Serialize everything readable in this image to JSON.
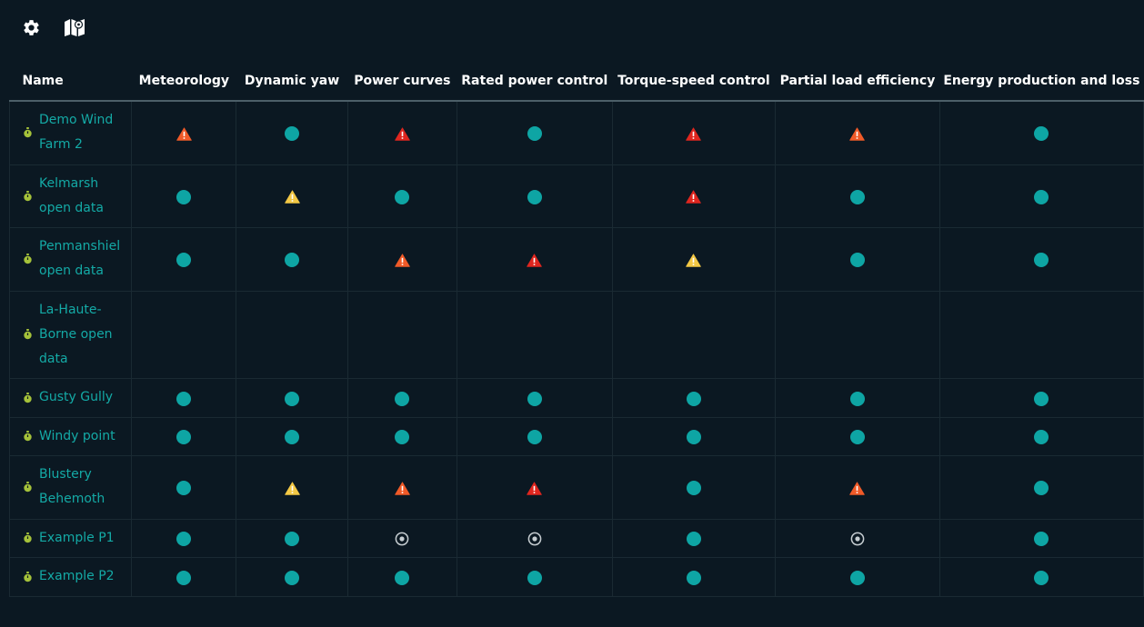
{
  "toolbar": {
    "items": [
      {
        "name": "settings",
        "icon": "gear-icon"
      },
      {
        "name": "map",
        "icon": "map-icon"
      }
    ]
  },
  "table": {
    "name_header": "Name",
    "columns": [
      "Meteorology",
      "Dynamic yaw",
      "Power curves",
      "Rated power control",
      "Torque-speed control",
      "Partial load efficiency",
      "Energy production and loss"
    ],
    "rows": [
      {
        "name": "Demo Wind Farm 2",
        "statuses": [
          "warning-orange",
          "ok",
          "warning-red",
          "ok",
          "warning-red",
          "warning-orange",
          "ok"
        ]
      },
      {
        "name": "Kelmarsh open data",
        "statuses": [
          "ok",
          "warning-yellow",
          "ok",
          "ok",
          "warning-red",
          "ok",
          "ok"
        ]
      },
      {
        "name": "Penmanshiel open data",
        "statuses": [
          "ok",
          "ok",
          "warning-orange",
          "warning-red",
          "warning-yellow",
          "ok",
          "ok"
        ]
      },
      {
        "name": "La-Haute-Borne open data",
        "statuses": [
          "none",
          "none",
          "none",
          "none",
          "none",
          "none",
          "none"
        ]
      },
      {
        "name": "Gusty Gully",
        "statuses": [
          "ok",
          "ok",
          "ok",
          "ok",
          "ok",
          "ok",
          "ok"
        ]
      },
      {
        "name": "Windy point",
        "statuses": [
          "ok",
          "ok",
          "ok",
          "ok",
          "ok",
          "ok",
          "ok"
        ]
      },
      {
        "name": "Blustery Behemoth",
        "statuses": [
          "ok",
          "warning-yellow",
          "warning-orange",
          "warning-red",
          "ok",
          "warning-orange",
          "ok"
        ]
      },
      {
        "name": "Example P1",
        "statuses": [
          "ok",
          "ok",
          "pending",
          "pending",
          "ok",
          "pending",
          "ok"
        ]
      },
      {
        "name": "Example P2",
        "statuses": [
          "ok",
          "ok",
          "ok",
          "ok",
          "ok",
          "ok",
          "ok"
        ]
      }
    ]
  },
  "colors": {
    "background": "#0b1822",
    "accent": "#14aaa6",
    "ok": "#0ea5a4",
    "warning-red": "#e0261f",
    "warning-orange": "#f05a28",
    "warning-yellow": "#f3c845",
    "pending": "#c7ced2",
    "site-icon": "#a5c23a"
  }
}
